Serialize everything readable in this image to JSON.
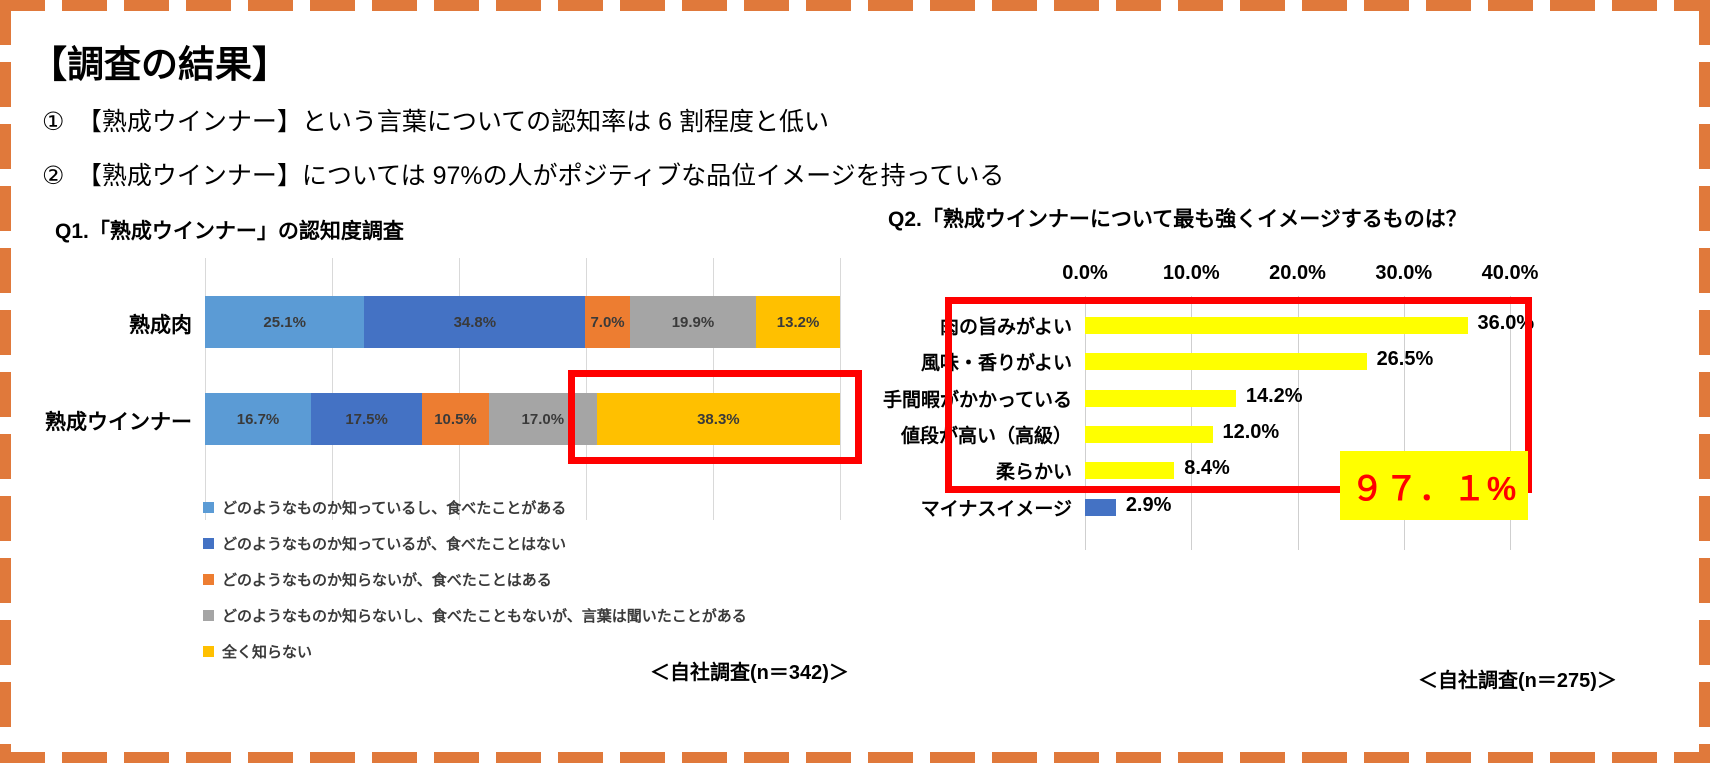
{
  "page": {
    "title": "【調査の結果】",
    "findings": [
      "①　【熟成ウインナー】という言葉についての認知率は 6 割程度と低い",
      "②　【熟成ウインナー】については 97%の人がポジティブな品位イメージを持っている"
    ]
  },
  "colors": {
    "border_orange": "#e0793b",
    "highlight_red": "#ff0000",
    "highlight_yellow": "#ffff00",
    "grid_gray": "#d9d9d9",
    "label_dark": "#3a3a3a"
  },
  "chart_data": [
    {
      "id": "q1",
      "type": "bar",
      "orientation": "horizontal-stacked",
      "title": "Q1.「熟成ウインナー」の認知度調査",
      "categories": [
        "熟成肉",
        "熟成ウインナー"
      ],
      "series": [
        {
          "name": "どのようなものか知っているし、食べたことがある",
          "color": "#5b9bd5",
          "values": [
            25.1,
            16.7
          ]
        },
        {
          "name": "どのようなものか知っているが、食べたことはない",
          "color": "#4472c4",
          "values": [
            34.8,
            17.5
          ]
        },
        {
          "name": "どのようなものか知らないが、食べたことはある",
          "color": "#ed7d31",
          "values": [
            7.0,
            10.5
          ]
        },
        {
          "name": "どのようなものか知らないし、食べたこともないが、言葉は聞いたことがある",
          "color": "#a5a5a5",
          "values": [
            19.9,
            17.0
          ]
        },
        {
          "name": "全く知らない",
          "color": "#ffc000",
          "values": [
            13.2,
            38.3
          ]
        }
      ],
      "value_labels": [
        [
          "25.1%",
          "34.8%",
          "7.0%",
          "19.9%",
          "13.2%"
        ],
        [
          "16.7%",
          "17.5%",
          "10.5%",
          "17.0%",
          "38.3%"
        ]
      ],
      "xlim": [
        0,
        100
      ],
      "grid_step": 20,
      "legend_position": "bottom",
      "grid": true,
      "note": "＜自社調査(n＝342)＞",
      "highlight": {
        "category": "熟成ウインナー",
        "segment": "全く知らない",
        "value": 38.3,
        "style": "red-box"
      }
    },
    {
      "id": "q2",
      "type": "bar",
      "orientation": "horizontal",
      "title": "Q2.「熟成ウインナーについて最も強くイメージするものは？",
      "categories": [
        "肉の旨みがよい",
        "風味・香りがよい",
        "手間暇がかかっている",
        "値段が高い（高級）",
        "柔らかい",
        "マイナスイメージ"
      ],
      "values": [
        36.0,
        26.5,
        14.2,
        12.0,
        8.4,
        2.9
      ],
      "value_labels": [
        "36.0%",
        "26.5%",
        "14.2%",
        "12.0%",
        "8.4%",
        "2.9%"
      ],
      "bar_colors": [
        "#ffff00",
        "#ffff00",
        "#ffff00",
        "#ffff00",
        "#ffff00",
        "#4472c4"
      ],
      "x_ticks": [
        "0.0%",
        "10.0%",
        "20.0%",
        "30.0%",
        "40.0%"
      ],
      "xlim": [
        0,
        40
      ],
      "axis_position": "top",
      "grid": true,
      "note": "＜自社調査(n＝275)＞",
      "highlight_total_label": "９７．１%",
      "highlighted_categories": [
        "肉の旨みがよい",
        "風味・香りがよい",
        "手間暇がかかっている",
        "値段が高い（高級）",
        "柔らかい"
      ]
    }
  ]
}
